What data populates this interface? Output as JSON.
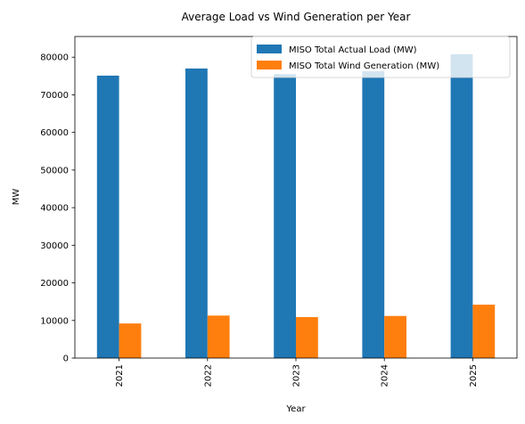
{
  "chart_data": {
    "type": "bar",
    "title": "Average Load vs Wind Generation per Year",
    "xlabel": "Year",
    "ylabel": "MW",
    "categories": [
      "2021",
      "2022",
      "2023",
      "2024",
      "2025"
    ],
    "series": [
      {
        "name": "MISO Total Actual Load (MW)",
        "color": "#1f77b4",
        "values": [
          75100,
          77000,
          75500,
          76300,
          80800
        ]
      },
      {
        "name": "MISO Total Wind Generation (MW)",
        "color": "#ff7f0e",
        "values": [
          9200,
          11300,
          10900,
          11200,
          14200
        ]
      }
    ],
    "ylim": [
      0,
      85500
    ],
    "yticks": [
      0,
      10000,
      20000,
      30000,
      40000,
      50000,
      60000,
      70000,
      80000
    ],
    "grid": false,
    "legend_position": "top-right"
  }
}
